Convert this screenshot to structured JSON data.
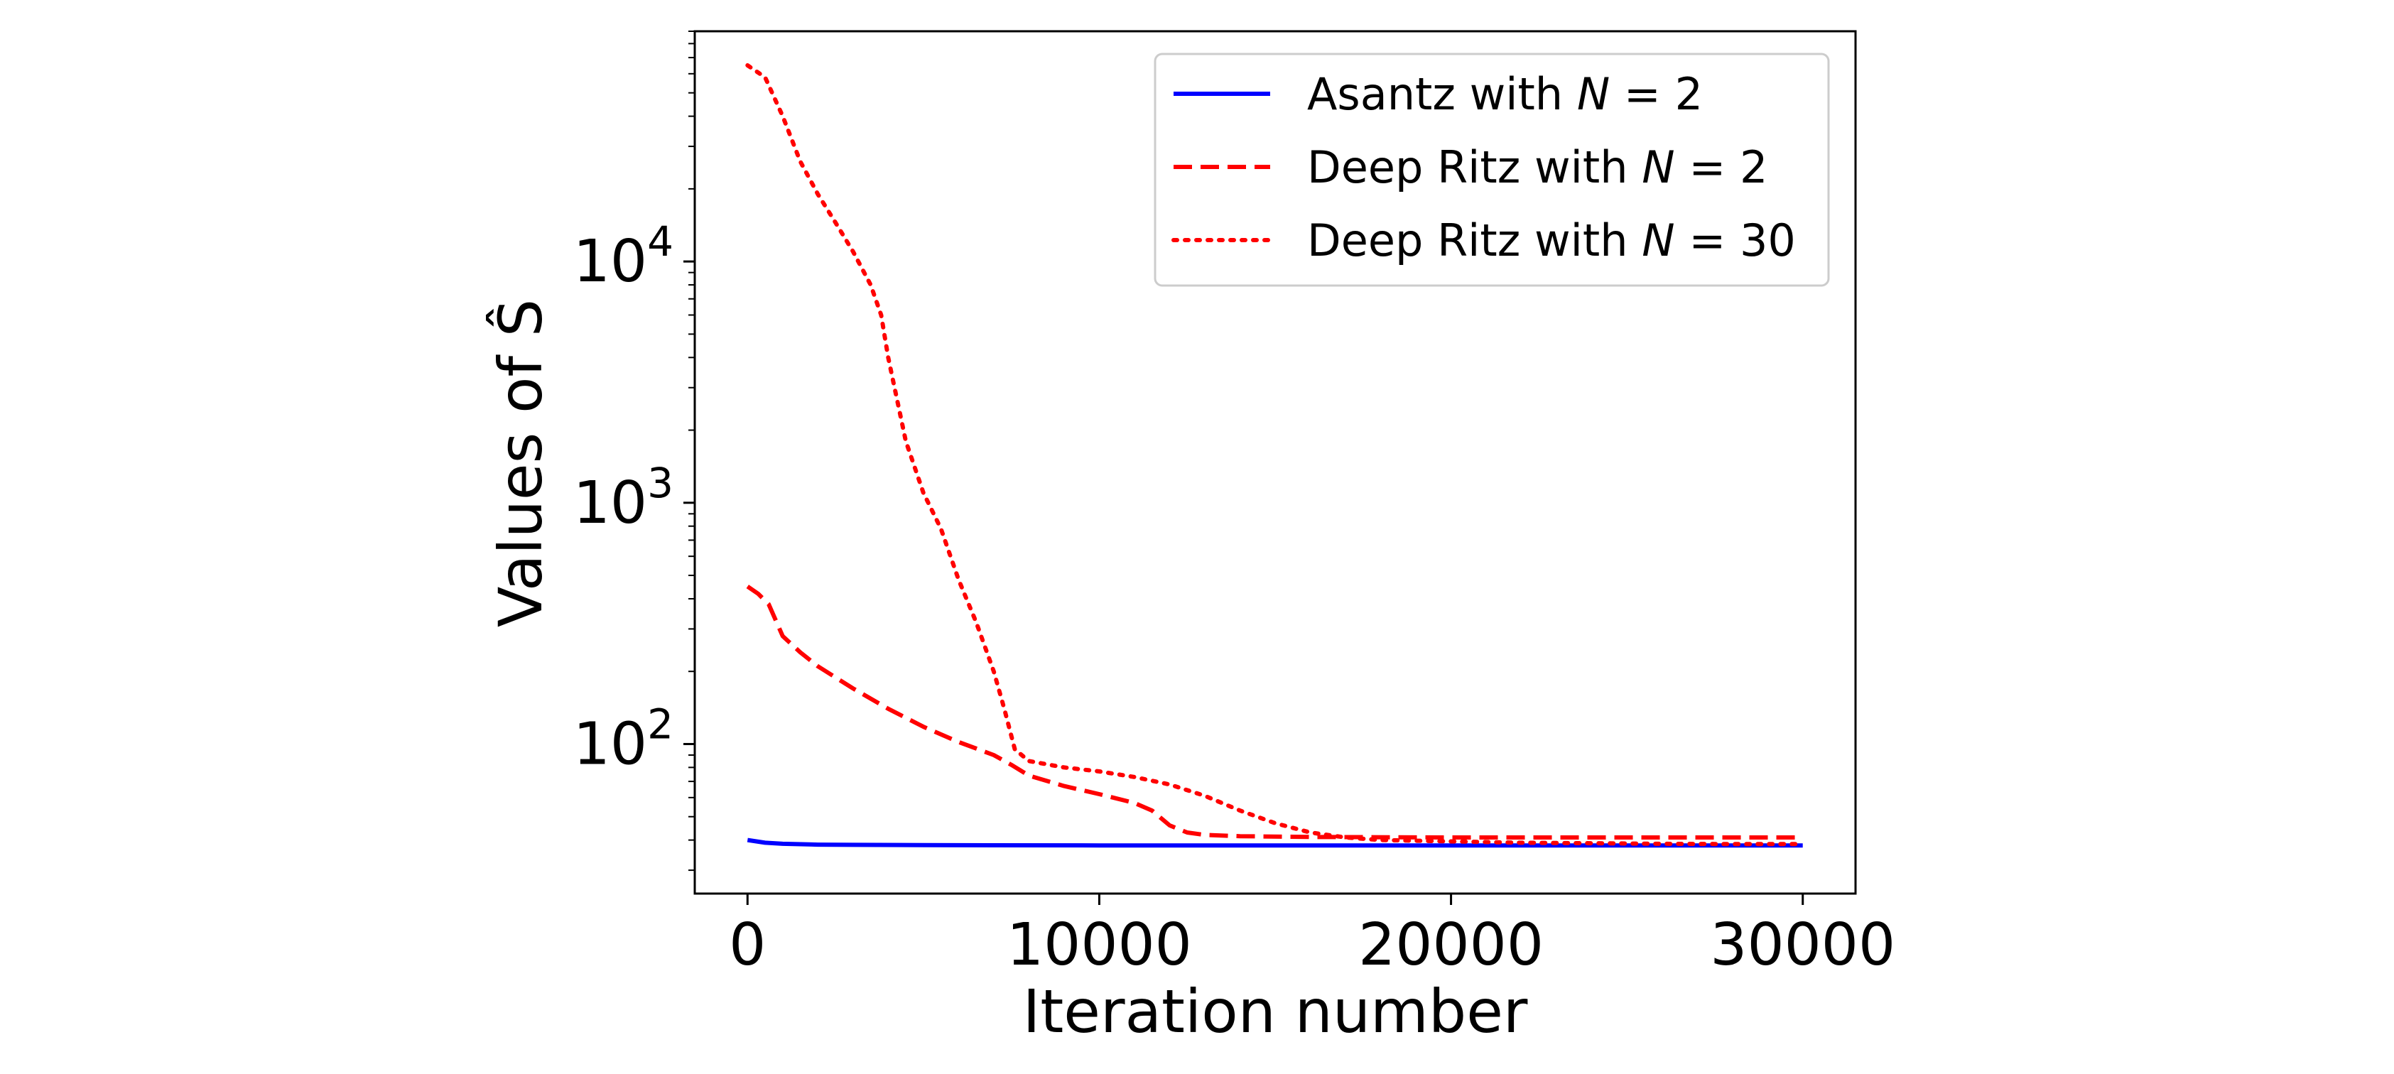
{
  "chart_data": {
    "type": "line",
    "xlabel": "Iteration number",
    "ylabel": "Values of Ŝ",
    "xlim": [
      -1500,
      31500
    ],
    "ylim": [
      24,
      90000
    ],
    "yscale": "log",
    "x_ticks": [
      0,
      10000,
      20000,
      30000
    ],
    "x_tick_labels": [
      "0",
      "10000",
      "20000",
      "30000"
    ],
    "y_ticks": [
      {
        "value": 100,
        "base": "10",
        "exp": "2"
      },
      {
        "value": 1000,
        "base": "10",
        "exp": "3"
      },
      {
        "value": 10000,
        "base": "10",
        "exp": "4"
      }
    ],
    "legend_position": "upper right",
    "grid": false,
    "series": [
      {
        "name": "Asantz with N = 2",
        "label": {
          "prefix": "Asantz with ",
          "var": "N",
          "eq": " = 2"
        },
        "color": "#0000ff",
        "style": "solid",
        "x": [
          0,
          500,
          1000,
          2000,
          3000,
          5000,
          10000,
          15000,
          20000,
          25000,
          30000
        ],
        "y": [
          40,
          39,
          38.6,
          38.3,
          38.2,
          38.1,
          38,
          38,
          38,
          38,
          38
        ]
      },
      {
        "name": "Deep Ritz with N = 2",
        "label": {
          "prefix": "Deep Ritz with ",
          "var": "N",
          "eq": " = 2"
        },
        "color": "#ff0000",
        "style": "dashed",
        "x": [
          0,
          300,
          600,
          1000,
          1500,
          2000,
          3000,
          4000,
          5000,
          6000,
          7000,
          7500,
          8000,
          9000,
          10000,
          11000,
          11500,
          12000,
          12500,
          13000,
          14000,
          16000,
          20000,
          25000,
          30000
        ],
        "y": [
          450,
          420,
          380,
          280,
          240,
          210,
          170,
          140,
          118,
          102,
          90,
          82,
          74,
          67,
          62,
          57,
          53,
          46,
          43,
          42,
          41.5,
          41.2,
          41,
          41,
          41
        ]
      },
      {
        "name": "Deep Ritz with N = 30",
        "label": {
          "prefix": "Deep Ritz with ",
          "var": "N",
          "eq": " = 30"
        },
        "color": "#ff0000",
        "style": "dotted",
        "x": [
          0,
          500,
          1000,
          1500,
          2000,
          2500,
          3000,
          3500,
          3800,
          4000,
          4500,
          5000,
          5500,
          6000,
          6500,
          7000,
          7300,
          7600,
          8000,
          9000,
          10000,
          11000,
          12000,
          13000,
          14000,
          15000,
          16000,
          17000,
          18000,
          20000,
          22000,
          24000,
          26000,
          28000,
          30000
        ],
        "y": [
          65000,
          58000,
          40000,
          26000,
          19000,
          14500,
          11000,
          8000,
          6000,
          4000,
          1800,
          1100,
          780,
          480,
          320,
          200,
          140,
          95,
          85,
          80,
          77,
          73,
          68,
          61,
          53,
          47,
          43,
          41,
          40,
          39.5,
          39,
          38.8,
          38.6,
          38.5,
          38.5
        ]
      }
    ]
  }
}
